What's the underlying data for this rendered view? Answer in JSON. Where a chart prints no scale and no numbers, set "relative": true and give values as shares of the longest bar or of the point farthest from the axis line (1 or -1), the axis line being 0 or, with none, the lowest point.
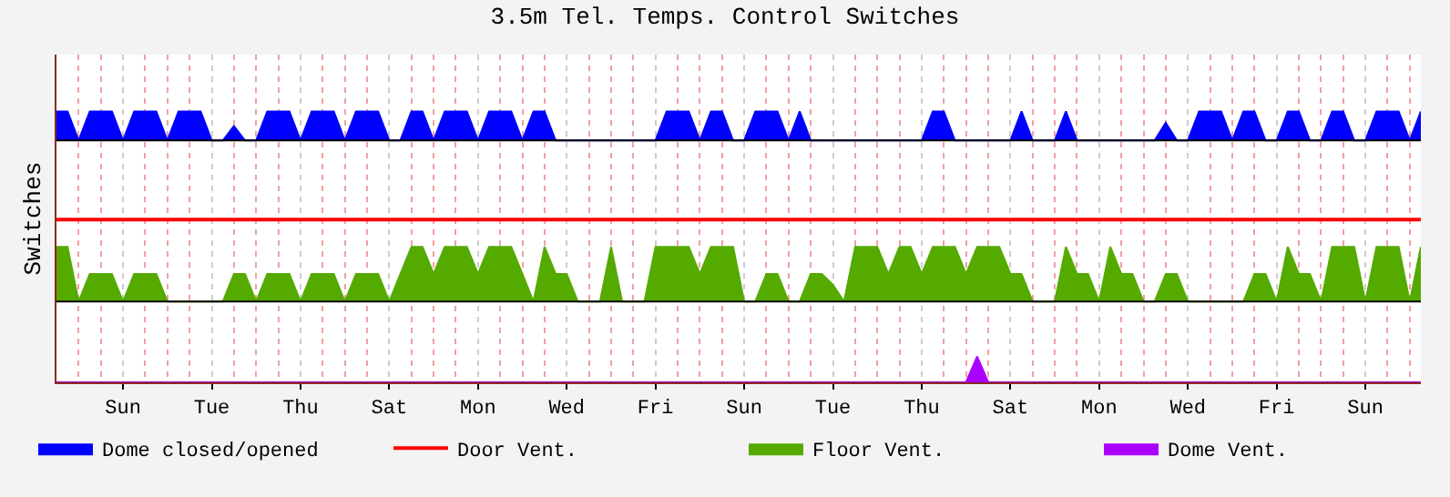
{
  "chart_data": {
    "type": "area",
    "title": "3.5m Tel. Temps. Control Switches",
    "ylabel": "Switches",
    "relative": true,
    "tick_labels": "x",
    "grid": "x",
    "legend": "bottom",
    "categories": [
      null,
      null,
      null,
      null,
      null,
      null,
      "Sun",
      null,
      null,
      null,
      null,
      null,
      null,
      null,
      "Tue",
      null,
      null,
      null,
      null,
      null,
      null,
      null,
      "Thu",
      null,
      null,
      null,
      null,
      null,
      null,
      null,
      "Sat",
      null,
      null,
      null,
      null,
      null,
      null,
      null,
      "Mon",
      null,
      null,
      null,
      null,
      null,
      null,
      null,
      "Wed",
      null,
      null,
      null,
      null,
      null,
      null,
      null,
      "Fri",
      null,
      null,
      null,
      null,
      null,
      null,
      null,
      "Sun",
      null,
      null,
      null,
      null,
      null,
      null,
      null,
      "Tue",
      null,
      null,
      null,
      null,
      null,
      null,
      null,
      "Thu",
      null,
      null,
      null,
      null,
      null,
      null,
      null,
      "Sat",
      null,
      null,
      null,
      null,
      null,
      null,
      null,
      "Mon",
      null,
      null,
      null,
      null,
      null,
      null,
      null,
      "Wed",
      null,
      null,
      null,
      null,
      null,
      null,
      null,
      "Fri",
      null,
      null,
      null,
      null,
      null,
      null,
      null,
      "Sun",
      null,
      null,
      null,
      null,
      null
    ],
    "ref_lines": [
      {
        "axis": "y",
        "value": 0.893,
        "color": "#000000"
      },
      {
        "axis": "y",
        "value": 0.298,
        "color": "#000000"
      }
    ],
    "series": [
      {
        "name": "Dome closed/opened",
        "color": "#0000ff",
        "values": [
          1,
          1,
          0.893,
          1,
          1,
          1,
          0.893,
          1,
          1,
          1,
          0.893,
          1,
          1,
          1,
          0.893,
          0.893,
          0.946,
          0.893,
          0.893,
          1,
          1,
          1,
          0.893,
          1,
          1,
          1,
          0.893,
          1,
          1,
          1,
          0.893,
          0.893,
          1,
          1,
          0.893,
          1,
          1,
          1,
          0.893,
          1,
          1,
          1,
          0.893,
          1,
          1,
          0.893,
          0.893,
          0.893,
          0.893,
          0.893,
          0.893,
          0.893,
          0.893,
          0.893,
          0.893,
          1,
          1,
          1,
          0.893,
          1,
          1,
          0.893,
          0.893,
          1,
          1,
          1,
          0.893,
          1,
          0.893,
          0.893,
          0.893,
          0.893,
          0.893,
          0.893,
          0.893,
          0.893,
          0.893,
          0.893,
          0.893,
          1,
          1,
          0.893,
          0.893,
          0.893,
          0.893,
          0.893,
          0.893,
          1,
          0.893,
          0.893,
          0.893,
          1,
          0.893,
          0.893,
          0.893,
          0.893,
          0.893,
          0.893,
          0.893,
          0.893,
          0.958,
          0.893,
          0.893,
          1,
          1,
          1,
          0.893,
          1,
          1,
          0.893,
          0.893,
          1,
          1,
          0.893,
          0.893,
          1,
          1,
          0.893,
          0.893,
          1,
          1,
          1,
          0.893,
          1
        ]
      },
      {
        "name": "Door Vent.",
        "color": "#ff0000",
        "type": "line",
        "values": [
          0.601,
          0.601,
          0.601,
          0.601,
          0.601,
          0.601,
          0.601,
          0.601,
          0.601,
          0.601,
          0.601,
          0.601,
          0.601,
          0.601,
          0.601,
          0.601,
          0.601,
          0.601,
          0.601,
          0.601,
          0.601,
          0.601,
          0.601,
          0.601,
          0.601,
          0.601,
          0.601,
          0.601,
          0.601,
          0.601,
          0.601,
          0.601,
          0.601,
          0.601,
          0.601,
          0.601,
          0.601,
          0.601,
          0.601,
          0.601,
          0.601,
          0.601,
          0.601,
          0.601,
          0.601,
          0.601,
          0.601,
          0.601,
          0.601,
          0.601,
          0.601,
          0.601,
          0.601,
          0.601,
          0.601,
          0.601,
          0.601,
          0.601,
          0.601,
          0.601,
          0.601,
          0.601,
          0.601,
          0.601,
          0.601,
          0.601,
          0.601,
          0.601,
          0.601,
          0.601,
          0.601,
          0.601,
          0.601,
          0.601,
          0.601,
          0.601,
          0.601,
          0.601,
          0.601,
          0.601,
          0.601,
          0.601,
          0.601,
          0.601,
          0.601,
          0.601,
          0.601,
          0.601,
          0.601,
          0.601,
          0.601,
          0.601,
          0.601,
          0.601,
          0.601,
          0.601,
          0.601,
          0.601,
          0.601,
          0.601,
          0.601,
          0.601,
          0.601,
          0.601,
          0.601,
          0.601,
          0.601,
          0.601,
          0.601,
          0.601,
          0.601,
          0.601,
          0.601,
          0.601,
          0.601,
          0.601,
          0.601,
          0.601,
          0.601,
          0.601,
          0.601,
          0.601,
          0.601,
          0.601
        ]
      },
      {
        "name": "Floor Vent.",
        "color": "#55aa00",
        "values": [
          0.5,
          0.5,
          0.298,
          0.4,
          0.4,
          0.4,
          0.298,
          0.4,
          0.4,
          0.4,
          0.298,
          0.298,
          0.298,
          0.298,
          0.298,
          0.298,
          0.4,
          0.4,
          0.298,
          0.4,
          0.4,
          0.4,
          0.298,
          0.4,
          0.4,
          0.4,
          0.298,
          0.4,
          0.4,
          0.4,
          0.298,
          0.4,
          0.5,
          0.5,
          0.4,
          0.5,
          0.5,
          0.5,
          0.4,
          0.5,
          0.5,
          0.5,
          0.4,
          0.298,
          0.5,
          0.4,
          0.4,
          0.298,
          0.298,
          0.298,
          0.5,
          0.298,
          0.298,
          0.298,
          0.5,
          0.5,
          0.5,
          0.5,
          0.4,
          0.5,
          0.5,
          0.5,
          0.298,
          0.298,
          0.4,
          0.4,
          0.298,
          0.298,
          0.4,
          0.4,
          0.36,
          0.298,
          0.5,
          0.5,
          0.5,
          0.4,
          0.5,
          0.5,
          0.4,
          0.5,
          0.5,
          0.5,
          0.4,
          0.5,
          0.5,
          0.5,
          0.4,
          0.4,
          0.298,
          0.298,
          0.298,
          0.5,
          0.4,
          0.4,
          0.298,
          0.5,
          0.4,
          0.4,
          0.298,
          0.298,
          0.4,
          0.4,
          0.298,
          0.298,
          0.298,
          0.298,
          0.298,
          0.298,
          0.4,
          0.4,
          0.298,
          0.5,
          0.4,
          0.4,
          0.298,
          0.5,
          0.5,
          0.5,
          0.298,
          0.5,
          0.5,
          0.5,
          0.298,
          0.5
        ]
      },
      {
        "name": "Dome Vent.",
        "color": "#aa00ff",
        "values": [
          0,
          0,
          0,
          0,
          0,
          0,
          0,
          0,
          0,
          0,
          0,
          0,
          0,
          0,
          0,
          0,
          0,
          0,
          0,
          0,
          0,
          0,
          0,
          0,
          0,
          0,
          0,
          0,
          0,
          0,
          0,
          0,
          0,
          0,
          0,
          0,
          0,
          0,
          0,
          0,
          0,
          0,
          0,
          0,
          0,
          0,
          0,
          0,
          0,
          0,
          0,
          0,
          0,
          0,
          0,
          0,
          0,
          0,
          0,
          0,
          0,
          0,
          0,
          0,
          0,
          0,
          0,
          0,
          0,
          0,
          0,
          0,
          0,
          0,
          0,
          0,
          0,
          0,
          0,
          0,
          0,
          0,
          0,
          0.095,
          0,
          0,
          0,
          0,
          0,
          0,
          0,
          0,
          0,
          0,
          0,
          0,
          0,
          0,
          0,
          0,
          0,
          0,
          0,
          0,
          0,
          0,
          0,
          0,
          0,
          0,
          0,
          0,
          0,
          0,
          0,
          0,
          0,
          0,
          0,
          0,
          0,
          0,
          0,
          0
        ]
      }
    ]
  }
}
